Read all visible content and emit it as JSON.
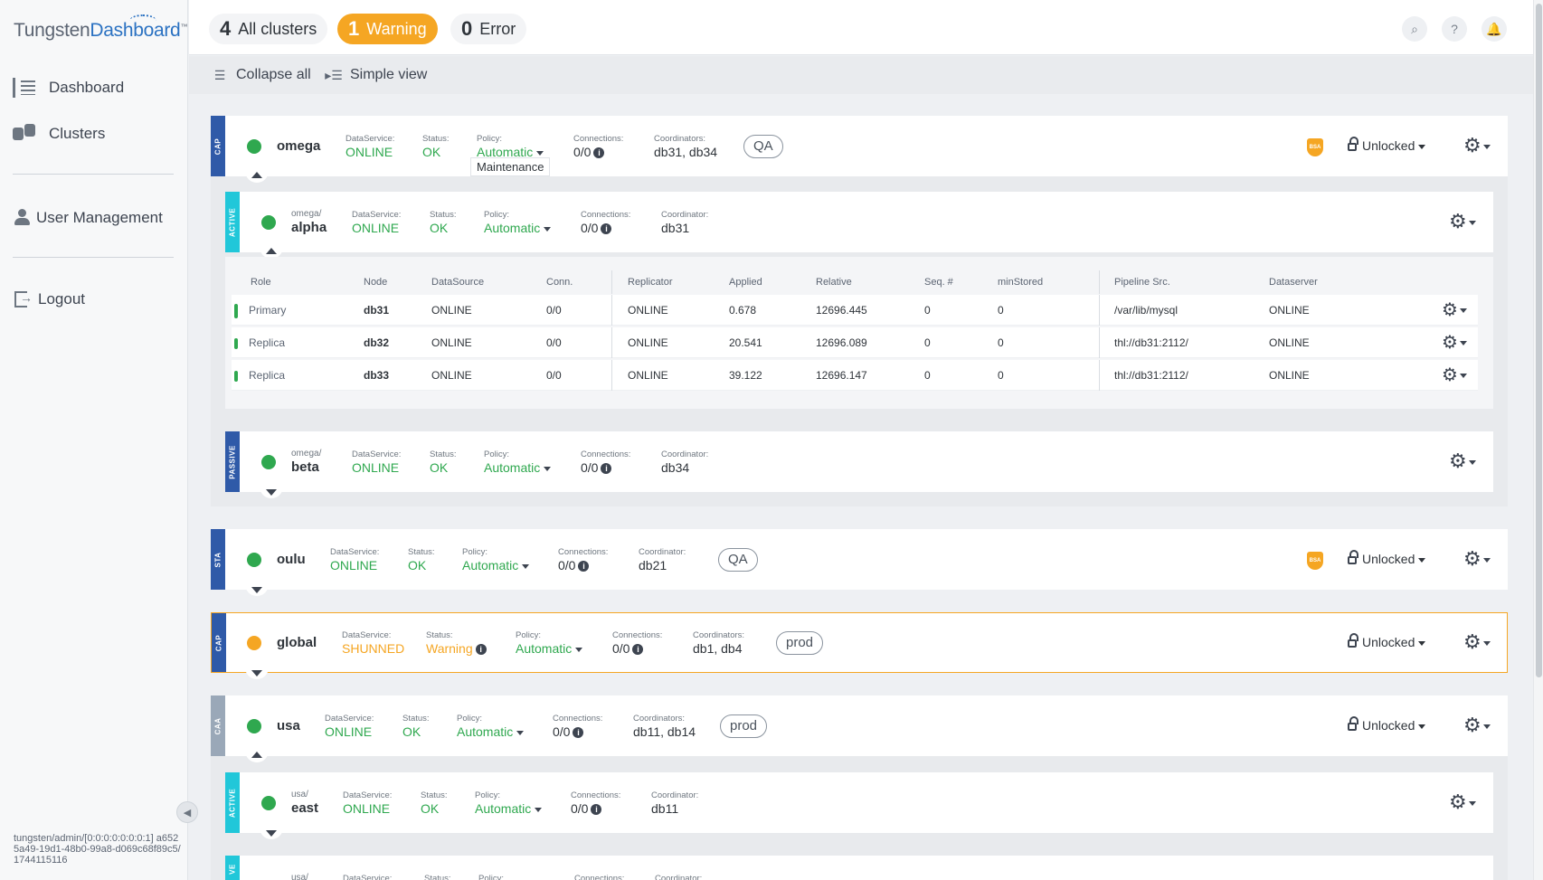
{
  "sidebar": {
    "logo": {
      "part1": "Tungsten",
      "part2": "Dashboard",
      "tm": "™"
    },
    "nav": [
      {
        "label": "Dashboard",
        "icon": "dashboard-icon"
      },
      {
        "label": "Clusters",
        "icon": "clusters-icon"
      },
      {
        "label": "User Management",
        "icon": "user-icon"
      },
      {
        "label": "Logout",
        "icon": "logout-icon"
      }
    ],
    "footer": "tungsten/admin/[0:0:0:0:0:0:0:1] a6525a49-19d1-48b0-99a8-d069c68f89c5/1744115116"
  },
  "topbar": {
    "all": {
      "count": "4",
      "label": "All clusters"
    },
    "warning": {
      "count": "1",
      "label": "Warning"
    },
    "error": {
      "count": "0",
      "label": "Error"
    }
  },
  "toolbar": {
    "collapse_all": "Collapse all",
    "simple_view": "Simple view"
  },
  "labels": {
    "dataservice": "DataService:",
    "status": "Status:",
    "policy": "Policy:",
    "connections": "Connections:",
    "coordinator": "Coordinator:",
    "coordinators": "Coordinators:"
  },
  "clusters": {
    "omega": {
      "tag": "CAP",
      "name": "omega",
      "dataservice": "ONLINE",
      "status": "OK",
      "policy": "Automatic",
      "connections": "0/0",
      "coordinators": "db31, db34",
      "badge": "QA",
      "lock": "Unlocked",
      "tooltip": "Maintenance",
      "alpha": {
        "tag": "ACTIVE",
        "prefix": "omega/",
        "name": "alpha",
        "dataservice": "ONLINE",
        "status": "OK",
        "policy": "Automatic",
        "connections": "0/0",
        "coordinator": "db31",
        "table": {
          "headers": [
            "Role",
            "Node",
            "DataSource",
            "Conn.",
            "Replicator",
            "Applied",
            "Relative",
            "Seq. #",
            "minStored",
            "Pipeline Src.",
            "Dataserver"
          ],
          "rows": [
            [
              "Primary",
              "db31",
              "ONLINE",
              "0/0",
              "ONLINE",
              "0.678",
              "12696.445",
              "0",
              "0",
              "/var/lib/mysql",
              "ONLINE"
            ],
            [
              "Replica",
              "db32",
              "ONLINE",
              "0/0",
              "ONLINE",
              "20.541",
              "12696.089",
              "0",
              "0",
              "thl://db31:2112/",
              "ONLINE"
            ],
            [
              "Replica",
              "db33",
              "ONLINE",
              "0/0",
              "ONLINE",
              "39.122",
              "12696.147",
              "0",
              "0",
              "thl://db31:2112/",
              "ONLINE"
            ]
          ]
        }
      },
      "beta": {
        "tag": "PASSIVE",
        "prefix": "omega/",
        "name": "beta",
        "dataservice": "ONLINE",
        "status": "OK",
        "policy": "Automatic",
        "connections": "0/0",
        "coordinator": "db34"
      }
    },
    "oulu": {
      "tag": "STA",
      "name": "oulu",
      "dataservice": "ONLINE",
      "status": "OK",
      "policy": "Automatic",
      "connections": "0/0",
      "coordinator": "db21",
      "badge": "QA",
      "lock": "Unlocked"
    },
    "global": {
      "tag": "CAP",
      "name": "global",
      "dataservice": "SHUNNED",
      "status": "Warning",
      "policy": "Automatic",
      "connections": "0/0",
      "coordinators": "db1, db4",
      "badge": "prod",
      "lock": "Unlocked"
    },
    "usa": {
      "tag": "CAA",
      "name": "usa",
      "dataservice": "ONLINE",
      "status": "OK",
      "policy": "Automatic",
      "connections": "0/0",
      "coordinators": "db11, db14",
      "badge": "prod",
      "lock": "Unlocked",
      "east": {
        "tag": "ACTIVE",
        "prefix": "usa/",
        "name": "east",
        "dataservice": "ONLINE",
        "status": "OK",
        "policy": "Automatic",
        "connections": "0/0",
        "coordinator": "db11"
      },
      "next": {
        "tag": "VE",
        "prefix": "usa/"
      }
    }
  },
  "icons": {
    "shield_text": "BSA",
    "info": "i",
    "gear": "⚙"
  },
  "colors": {
    "ok": "#2fa84f",
    "warning": "#f5a623",
    "cap": "#2f5aa8",
    "active": "#21c7d9",
    "caa": "#9aa8b8"
  }
}
